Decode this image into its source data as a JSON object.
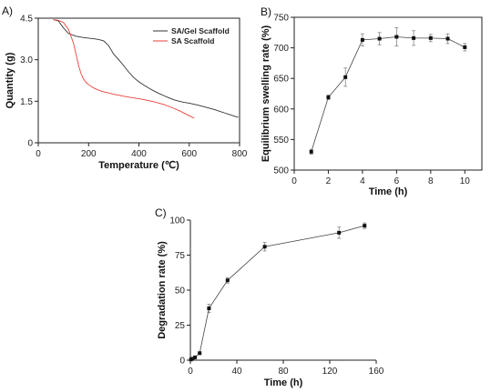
{
  "chart_data": [
    {
      "id": "A",
      "type": "line",
      "panel_label": "A)",
      "xlabel": "Temperature (℃)",
      "ylabel": "Quantity (g)",
      "xlim": [
        0,
        800
      ],
      "ylim": [
        0,
        4.5
      ],
      "xticks": [
        0,
        200,
        400,
        600,
        800
      ],
      "yticks": [
        0,
        1.5,
        3.0,
        4.5
      ],
      "ytick_labels": [
        "0",
        "1.5",
        "3.0",
        "4.5"
      ],
      "legend_position": "top-right",
      "frame": "box",
      "series": [
        {
          "name": "SA/Gel Scaffold",
          "color": "#333333",
          "x": [
            60,
            80,
            100,
            120,
            150,
            180,
            200,
            220,
            240,
            260,
            280,
            300,
            320,
            340,
            360,
            380,
            400,
            420,
            440,
            460,
            480,
            500,
            520,
            540,
            560,
            580,
            600,
            620,
            640,
            660,
            680,
            700,
            720,
            740,
            760,
            780,
            795
          ],
          "y": [
            4.45,
            4.4,
            4.15,
            3.95,
            3.85,
            3.8,
            3.78,
            3.76,
            3.73,
            3.68,
            3.5,
            3.2,
            3.0,
            2.78,
            2.55,
            2.35,
            2.2,
            2.08,
            1.97,
            1.87,
            1.78,
            1.7,
            1.62,
            1.55,
            1.5,
            1.46,
            1.43,
            1.39,
            1.35,
            1.3,
            1.25,
            1.2,
            1.14,
            1.08,
            1.02,
            0.96,
            0.92
          ]
        },
        {
          "name": "SA Scaffold",
          "color": "#e8423a",
          "x": [
            60,
            80,
            100,
            120,
            140,
            150,
            160,
            170,
            180,
            190,
            200,
            220,
            240,
            260,
            280,
            300,
            320,
            340,
            360,
            380,
            400,
            420,
            440,
            460,
            480,
            500,
            520,
            540,
            560,
            580,
            600,
            620
          ],
          "y": [
            4.45,
            4.42,
            4.35,
            4.1,
            3.6,
            3.2,
            2.8,
            2.5,
            2.3,
            2.18,
            2.1,
            1.98,
            1.9,
            1.84,
            1.8,
            1.75,
            1.72,
            1.68,
            1.65,
            1.62,
            1.59,
            1.56,
            1.52,
            1.48,
            1.43,
            1.38,
            1.31,
            1.24,
            1.16,
            1.07,
            0.98,
            0.89
          ]
        }
      ]
    },
    {
      "id": "B",
      "type": "line",
      "panel_label": "B)",
      "xlabel": "Time (h)",
      "ylabel": "Equilibrium swelling rate (%)",
      "xlim": [
        0,
        11
      ],
      "ylim": [
        500,
        750
      ],
      "xticks": [
        0,
        2,
        4,
        6,
        8,
        10
      ],
      "yticks": [
        500,
        550,
        600,
        650,
        700,
        750
      ],
      "frame": "box",
      "series": [
        {
          "color": "#444444",
          "x": [
            1,
            2,
            3,
            4,
            5,
            6,
            7,
            8,
            9,
            10
          ],
          "y": [
            530,
            619,
            652,
            713,
            715,
            718,
            716,
            716,
            715,
            701
          ],
          "error": [
            4,
            4,
            15,
            10,
            10,
            15,
            12,
            6,
            8,
            6
          ]
        }
      ]
    },
    {
      "id": "C",
      "type": "line",
      "panel_label": "C)",
      "xlabel": "Time (h)",
      "ylabel": "Degradation rate (%)",
      "xlim": [
        0,
        160
      ],
      "ylim": [
        0,
        100
      ],
      "xticks": [
        0,
        40,
        80,
        120,
        160
      ],
      "yticks": [
        0,
        25,
        50,
        75,
        100
      ],
      "frame": "left-bottom",
      "series": [
        {
          "color": "#444444",
          "x": [
            0.5,
            2,
            4,
            8,
            16,
            32,
            64,
            128,
            150
          ],
          "y": [
            0.5,
            1,
            2,
            5,
            37,
            57,
            81,
            91,
            96
          ],
          "error": [
            0.5,
            0.5,
            0.5,
            1,
            3,
            2,
            3,
            4,
            2
          ]
        }
      ]
    }
  ]
}
